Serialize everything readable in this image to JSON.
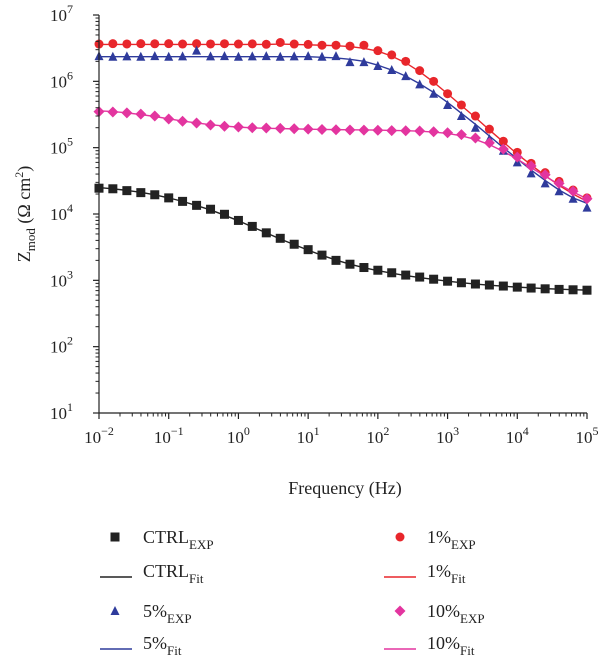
{
  "chart_data": {
    "type": "line",
    "title": "",
    "xlabel": "Frequency (Hz)",
    "ylabel": {
      "base": "Z",
      "sub": "mod",
      "unit_open": " (Ω cm",
      "unit_sup": "2",
      "unit_close": ")"
    },
    "x_scale": "log",
    "y_scale": "log",
    "xlim": [
      0.01,
      100000
    ],
    "ylim": [
      10,
      10000000
    ],
    "x_ticks": [
      {
        "base": "10",
        "exp": "−2",
        "value": 0.01
      },
      {
        "base": "10",
        "exp": "−1",
        "value": 0.1
      },
      {
        "base": "10",
        "exp": "0",
        "value": 1
      },
      {
        "base": "10",
        "exp": "1",
        "value": 10
      },
      {
        "base": "10",
        "exp": "2",
        "value": 100
      },
      {
        "base": "10",
        "exp": "3",
        "value": 1000
      },
      {
        "base": "10",
        "exp": "4",
        "value": 10000
      },
      {
        "base": "10",
        "exp": "5",
        "value": 100000
      }
    ],
    "y_ticks": [
      {
        "base": "10",
        "exp": "1",
        "value": 10
      },
      {
        "base": "10",
        "exp": "2",
        "value": 100
      },
      {
        "base": "10",
        "exp": "3",
        "value": 1000
      },
      {
        "base": "10",
        "exp": "4",
        "value": 10000
      },
      {
        "base": "10",
        "exp": "5",
        "value": 100000
      },
      {
        "base": "10",
        "exp": "6",
        "value": 1000000
      },
      {
        "base": "10",
        "exp": "7",
        "value": 10000000
      }
    ],
    "grid": false,
    "legend_position": "bottom",
    "x": [
      0.01,
      0.0158,
      0.0251,
      0.0398,
      0.0631,
      0.1,
      0.158,
      0.251,
      0.398,
      0.631,
      1,
      1.58,
      2.51,
      3.98,
      6.31,
      10,
      15.8,
      25.1,
      39.8,
      63.1,
      100,
      158,
      251,
      398,
      631,
      1000,
      1580,
      2510,
      3980,
      6310,
      10000,
      15800,
      25100,
      39800,
      63100,
      100000
    ],
    "series": [
      {
        "name": "CTRL",
        "color": "#222222",
        "marker": "square",
        "exp_label": {
          "base": "CTRL",
          "sub": "EXP"
        },
        "fit_label": {
          "base": "CTRL",
          "sub": "Fit"
        },
        "exp": [
          24500,
          24000,
          22500,
          21000,
          19500,
          17500,
          15500,
          13500,
          11800,
          9900,
          8000,
          6500,
          5200,
          4300,
          3500,
          2900,
          2400,
          2000,
          1750,
          1560,
          1420,
          1300,
          1200,
          1120,
          1040,
          970,
          920,
          880,
          850,
          820,
          790,
          765,
          745,
          730,
          720,
          710
        ],
        "fit": [
          25000,
          24000,
          22700,
          21200,
          19500,
          17500,
          15500,
          13400,
          11500,
          9600,
          7900,
          6400,
          5200,
          4200,
          3450,
          2850,
          2380,
          2020,
          1750,
          1550,
          1400,
          1280,
          1180,
          1100,
          1030,
          970,
          920,
          880,
          845,
          815,
          790,
          770,
          750,
          735,
          722,
          712
        ]
      },
      {
        "name": "1%",
        "color": "#e8262b",
        "marker": "circle",
        "exp_label": {
          "base": "1%",
          "sub": "EXP"
        },
        "fit_label": {
          "base": "1%",
          "sub": "Fit"
        },
        "exp": [
          3650000,
          3700000,
          3660000,
          3700000,
          3680000,
          3700000,
          3650000,
          3700000,
          3660000,
          3690000,
          3650000,
          3670000,
          3620000,
          3850000,
          3650000,
          3600000,
          3500000,
          3500000,
          3400000,
          3500000,
          2900000,
          2500000,
          2000000,
          1450000,
          1000000,
          650000,
          440000,
          300000,
          190000,
          125000,
          85000,
          58000,
          42000,
          31000,
          23000,
          17500
        ],
        "fit": [
          3600000,
          3600000,
          3600000,
          3600000,
          3600000,
          3600000,
          3600000,
          3600000,
          3600000,
          3600000,
          3600000,
          3600000,
          3600000,
          3650000,
          3600000,
          3550000,
          3500000,
          3450000,
          3350000,
          3150000,
          2850000,
          2400000,
          1900000,
          1400000,
          970000,
          650000,
          430000,
          285000,
          185000,
          122000,
          80000,
          55000,
          38000,
          27000,
          20000,
          15500
        ]
      },
      {
        "name": "5%",
        "color": "#2f3b9c",
        "marker": "triangle",
        "exp_label": {
          "base": "5%",
          "sub": "EXP"
        },
        "fit_label": {
          "base": "5%",
          "sub": "Fit"
        },
        "exp": [
          2400000,
          2350000,
          2380000,
          2350000,
          2400000,
          2350000,
          2380000,
          2900000,
          2380000,
          2400000,
          2350000,
          2380000,
          2400000,
          2350000,
          2380000,
          2400000,
          2350000,
          2400000,
          1950000,
          1950000,
          1700000,
          1480000,
          1200000,
          900000,
          650000,
          440000,
          300000,
          200000,
          135000,
          90000,
          60000,
          41000,
          29000,
          22000,
          17000,
          12500
        ],
        "fit": [
          2350000,
          2350000,
          2350000,
          2350000,
          2350000,
          2350000,
          2350000,
          2350000,
          2350000,
          2350000,
          2350000,
          2350000,
          2350000,
          2350000,
          2350000,
          2350000,
          2300000,
          2250000,
          2150000,
          2000000,
          1750000,
          1480000,
          1200000,
          920000,
          680000,
          480000,
          330000,
          225000,
          150000,
          100000,
          68000,
          46000,
          32000,
          23000,
          17500,
          14500
        ]
      },
      {
        "name": "10%",
        "color": "#e3359f",
        "marker": "diamond",
        "exp_label": {
          "base": "10%",
          "sub": "EXP"
        },
        "fit_label": {
          "base": "10%",
          "sub": "Fit"
        },
        "exp": [
          350000,
          345000,
          335000,
          320000,
          300000,
          270000,
          250000,
          235000,
          220000,
          210000,
          205000,
          200000,
          198000,
          195000,
          193000,
          190000,
          188000,
          186000,
          185000,
          184000,
          183000,
          181000,
          180000,
          178000,
          174000,
          168000,
          157000,
          140000,
          118000,
          95000,
          72000,
          53000,
          39000,
          29000,
          22000,
          17000
        ],
        "fit": [
          360000,
          350000,
          335000,
          315000,
          295000,
          272000,
          252000,
          236000,
          222000,
          212000,
          204000,
          199000,
          196000,
          194000,
          192000,
          190000,
          188000,
          187000,
          186000,
          185000,
          184000,
          182000,
          180000,
          177000,
          172000,
          164000,
          151000,
          133000,
          111000,
          88000,
          67000,
          50000,
          37000,
          28000,
          21500,
          17000
        ]
      }
    ]
  }
}
